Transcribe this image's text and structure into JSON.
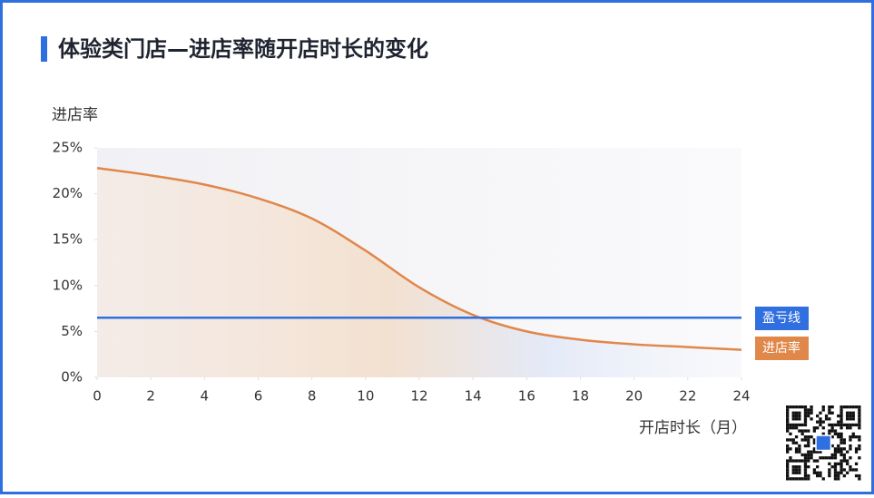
{
  "chart_data": {
    "type": "line",
    "title": "体验类门店—进店率随开店时长的变化",
    "y_label": "进店率",
    "x_label": "开店时长（月）",
    "x": [
      0,
      2,
      4,
      6,
      8,
      10,
      12,
      14,
      16,
      18,
      20,
      22,
      24
    ],
    "series": [
      {
        "name": "进店率",
        "color": "#e0874a",
        "values": [
          22.8,
          22.0,
          21.0,
          19.5,
          17.3,
          13.8,
          9.8,
          6.8,
          5.0,
          4.1,
          3.6,
          3.3,
          3.0
        ]
      }
    ],
    "reference_line": {
      "name": "盈亏线",
      "value": 6.5,
      "color": "#2f6fe0"
    },
    "xlim": [
      0,
      24
    ],
    "xticks": [
      0,
      2,
      4,
      6,
      8,
      10,
      12,
      14,
      16,
      18,
      20,
      22,
      24
    ],
    "ylim": [
      0,
      25
    ],
    "yticks": [
      {
        "value": 0,
        "label": "0%"
      },
      {
        "value": 5,
        "label": "5%"
      },
      {
        "value": 10,
        "label": "10%"
      },
      {
        "value": 15,
        "label": "15%"
      },
      {
        "value": 20,
        "label": "20%"
      },
      {
        "value": 25,
        "label": "25%"
      }
    ]
  }
}
